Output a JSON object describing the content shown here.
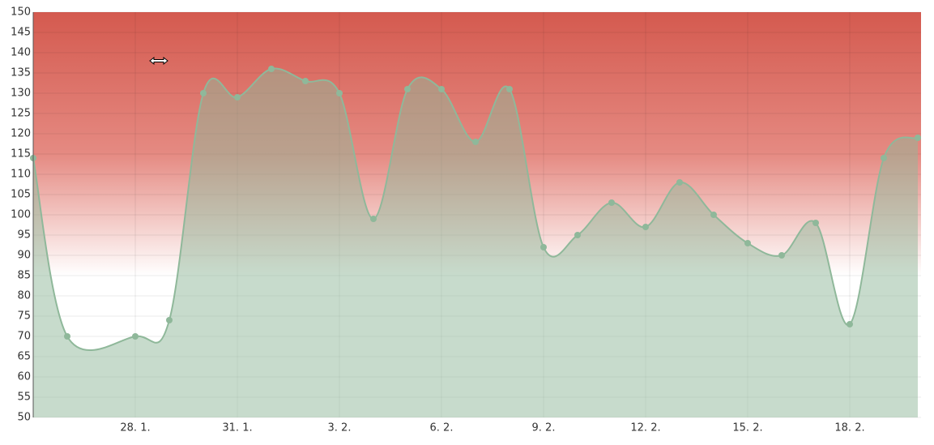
{
  "chart_data": {
    "type": "area",
    "x": [
      0,
      1,
      3,
      4,
      5,
      6,
      7,
      8,
      9,
      10,
      11,
      12,
      13,
      14,
      15,
      16,
      17,
      18,
      19,
      20,
      21,
      22,
      23,
      24,
      25,
      26
    ],
    "series": [
      {
        "color": "#8fb89a",
        "values": [
          114,
          70,
          70,
          74,
          130,
          129,
          136,
          133,
          130,
          99,
          131,
          131,
          118,
          131,
          92,
          95,
          103,
          97,
          108,
          100,
          93,
          90,
          98,
          73,
          114,
          119
        ]
      }
    ],
    "xlim": [
      0,
      26
    ],
    "xticks": [
      {
        "value": 3,
        "label": "28. 1."
      },
      {
        "value": 6,
        "label": "31. 1."
      },
      {
        "value": 9,
        "label": "3. 2."
      },
      {
        "value": 12,
        "label": "6. 2."
      },
      {
        "value": 15,
        "label": "9. 2."
      },
      {
        "value": 18,
        "label": "12. 2."
      },
      {
        "value": 21,
        "label": "15. 2."
      },
      {
        "value": 24,
        "label": "18. 2."
      }
    ],
    "ylim": [
      50,
      150
    ],
    "yticks": [
      50,
      55,
      60,
      65,
      70,
      75,
      80,
      85,
      90,
      95,
      100,
      105,
      110,
      115,
      120,
      125,
      130,
      135,
      140,
      145,
      150
    ],
    "grid": true
  }
}
